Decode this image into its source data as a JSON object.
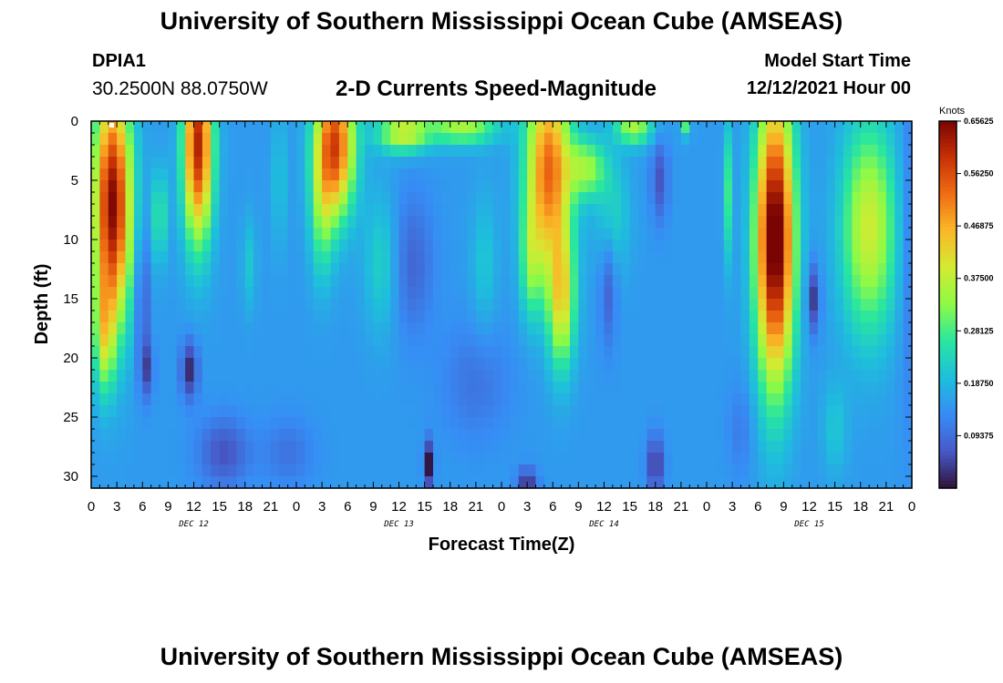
{
  "header": {
    "main_title": "University of Southern Mississippi Ocean Cube (AMSEAS)",
    "station_id": "DPIA1",
    "station_coords": "30.2500N  88.0750W",
    "model_start_label": "Model Start Time",
    "model_start_value": "12/12/2021 Hour 00"
  },
  "footer": {
    "title": "University of Southern Mississippi Ocean Cube (AMSEAS)"
  },
  "chart_data": {
    "type": "heatmap",
    "title": "2-D Currents Speed-Magnitude",
    "xlabel": "Forecast Time(Z)",
    "ylabel": "Depth (ft)",
    "x_range_hours": [
      0,
      96
    ],
    "ylim": [
      0,
      31
    ],
    "y_inverted": true,
    "x_ticks": [
      {
        "h": 0,
        "label": "0"
      },
      {
        "h": 3,
        "label": "3"
      },
      {
        "h": 6,
        "label": "6"
      },
      {
        "h": 9,
        "label": "9"
      },
      {
        "h": 12,
        "label": "12"
      },
      {
        "h": 15,
        "label": "15"
      },
      {
        "h": 18,
        "label": "18"
      },
      {
        "h": 21,
        "label": "21"
      },
      {
        "h": 24,
        "label": "0"
      },
      {
        "h": 27,
        "label": "3"
      },
      {
        "h": 30,
        "label": "6"
      },
      {
        "h": 33,
        "label": "9"
      },
      {
        "h": 36,
        "label": "12"
      },
      {
        "h": 39,
        "label": "15"
      },
      {
        "h": 42,
        "label": "18"
      },
      {
        "h": 45,
        "label": "21"
      },
      {
        "h": 48,
        "label": "0"
      },
      {
        "h": 51,
        "label": "3"
      },
      {
        "h": 54,
        "label": "6"
      },
      {
        "h": 57,
        "label": "9"
      },
      {
        "h": 60,
        "label": "12"
      },
      {
        "h": 63,
        "label": "15"
      },
      {
        "h": 66,
        "label": "18"
      },
      {
        "h": 69,
        "label": "21"
      },
      {
        "h": 72,
        "label": "0"
      },
      {
        "h": 75,
        "label": "3"
      },
      {
        "h": 78,
        "label": "6"
      },
      {
        "h": 81,
        "label": "9"
      },
      {
        "h": 84,
        "label": "12"
      },
      {
        "h": 87,
        "label": "15"
      },
      {
        "h": 90,
        "label": "18"
      },
      {
        "h": 93,
        "label": "21"
      },
      {
        "h": 96,
        "label": "0"
      }
    ],
    "day_labels": [
      {
        "h": 12,
        "label": "DEC 12"
      },
      {
        "h": 36,
        "label": "DEC 13"
      },
      {
        "h": 60,
        "label": "DEC 14"
      },
      {
        "h": 84,
        "label": "DEC 15"
      }
    ],
    "y_ticks": [
      0,
      5,
      10,
      15,
      20,
      25,
      30
    ],
    "colorbar": {
      "unit_label": "Knots",
      "min": 0,
      "max": 0.65625,
      "ticks": [
        "0.65625",
        "0.56250",
        "0.46875",
        "0.37500",
        "0.28125",
        "0.18750",
        "0.09375"
      ],
      "tick_values": [
        0.65625,
        0.5625,
        0.46875,
        0.375,
        0.28125,
        0.1875,
        0.09375
      ]
    },
    "features": [
      {
        "t": 2.5,
        "d": 7,
        "st": 2.2,
        "sd": 10,
        "a": 0.5
      },
      {
        "t": 1.5,
        "d": 18,
        "st": 1.2,
        "sd": 5,
        "a": 0.18
      },
      {
        "t": 12.5,
        "d": 2,
        "st": 1.7,
        "sd": 8,
        "a": 0.46
      },
      {
        "t": 28.5,
        "d": 2,
        "st": 2.3,
        "sd": 6,
        "a": 0.42
      },
      {
        "t": 27,
        "d": 8,
        "st": 1.4,
        "sd": 6,
        "a": 0.12
      },
      {
        "t": 36.5,
        "d": 1,
        "st": 3.0,
        "sd": 1.6,
        "a": 0.24
      },
      {
        "t": 43.5,
        "d": 0.5,
        "st": 4.0,
        "sd": 1.5,
        "a": 0.2
      },
      {
        "t": 53.5,
        "d": 4,
        "st": 2.6,
        "sd": 8,
        "a": 0.38
      },
      {
        "t": 55,
        "d": 15,
        "st": 1.6,
        "sd": 6,
        "a": 0.26
      },
      {
        "t": 51.5,
        "d": 12,
        "st": 1.3,
        "sd": 5,
        "a": 0.14
      },
      {
        "t": 58,
        "d": 4,
        "st": 2.2,
        "sd": 2.5,
        "a": 0.18
      },
      {
        "t": 63.5,
        "d": 0.5,
        "st": 2.2,
        "sd": 1.5,
        "a": 0.2
      },
      {
        "t": 69.5,
        "d": 0,
        "st": 0.6,
        "sd": 1.2,
        "a": 0.16
      },
      {
        "t": 80,
        "d": 10,
        "st": 2.2,
        "sd": 12,
        "a": 0.55
      },
      {
        "t": 91,
        "d": 9,
        "st": 3.2,
        "sd": 9,
        "a": 0.24
      },
      {
        "t": 8,
        "d": 8,
        "st": 0.9,
        "sd": 4,
        "a": 0.12
      },
      {
        "t": 18.5,
        "d": 12,
        "st": 0.9,
        "sd": 4,
        "a": 0.06
      },
      {
        "t": 22,
        "d": 5,
        "st": 0.8,
        "sd": 6,
        "a": 0.06
      },
      {
        "t": 34,
        "d": 12,
        "st": 2.0,
        "sd": 6,
        "a": 0.08
      },
      {
        "t": 46,
        "d": 12,
        "st": 1.5,
        "sd": 6,
        "a": 0.06
      },
      {
        "t": 61,
        "d": 8,
        "st": 2.0,
        "sd": 5,
        "a": 0.08
      },
      {
        "t": 74.5,
        "d": 6,
        "st": 0.5,
        "sd": 6,
        "a": 0.12
      },
      {
        "t": 87,
        "d": 26,
        "st": 1.5,
        "sd": 4,
        "a": 0.06
      },
      {
        "t": 6,
        "d": 15,
        "st": 0.7,
        "sd": 6,
        "a": -0.1
      },
      {
        "t": 11.5,
        "d": 21,
        "st": 1.0,
        "sd": 2.5,
        "a": -0.13
      },
      {
        "t": 6.5,
        "d": 21,
        "st": 0.8,
        "sd": 2.5,
        "a": -0.09
      },
      {
        "t": 15.5,
        "d": 28,
        "st": 3.0,
        "sd": 3,
        "a": -0.09
      },
      {
        "t": 39.5,
        "d": 29,
        "st": 0.6,
        "sd": 2.0,
        "a": -0.16
      },
      {
        "t": 51,
        "d": 30.5,
        "st": 1.2,
        "sd": 1.2,
        "a": -0.12
      },
      {
        "t": 66,
        "d": 29,
        "st": 1.0,
        "sd": 2.5,
        "a": -0.12
      },
      {
        "t": 66.5,
        "d": 5,
        "st": 1.0,
        "sd": 3.5,
        "a": -0.09
      },
      {
        "t": 84.5,
        "d": 15,
        "st": 0.8,
        "sd": 3,
        "a": -0.12
      },
      {
        "t": 37.5,
        "d": 12,
        "st": 2.5,
        "sd": 6,
        "a": -0.07
      },
      {
        "t": 60.5,
        "d": 14,
        "st": 1.0,
        "sd": 5,
        "a": -0.08
      },
      {
        "t": 45,
        "d": 22,
        "st": 4.0,
        "sd": 5,
        "a": -0.05
      },
      {
        "t": 23,
        "d": 28,
        "st": 3.0,
        "sd": 3,
        "a": -0.05
      },
      {
        "t": 76,
        "d": 26,
        "st": 1.5,
        "sd": 4,
        "a": -0.04
      },
      {
        "t": 95.5,
        "d": 10,
        "st": 1.0,
        "sd": 15,
        "a": -0.05
      }
    ]
  }
}
